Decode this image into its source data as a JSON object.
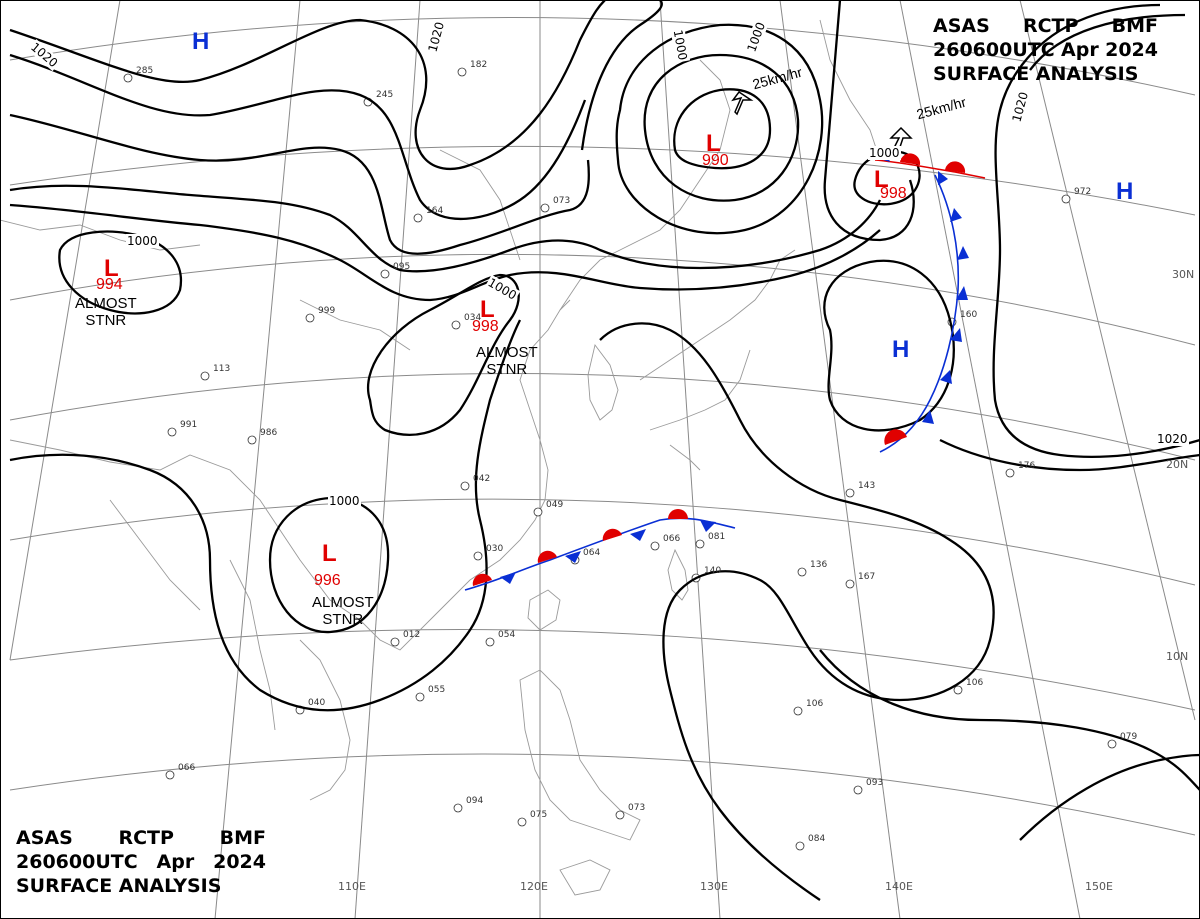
{
  "header_top": {
    "line1": [
      "ASAS",
      "RCTP",
      "BMF"
    ],
    "line2": [
      "260600UTC",
      "Apr",
      "2024"
    ],
    "line3": "SURFACE ANALYSIS"
  },
  "header_bottom": {
    "line1": [
      "ASAS",
      "RCTP",
      "BMF"
    ],
    "line2": [
      "260600UTC",
      "Apr",
      "2024"
    ],
    "line3": "SURFACE ANALYSIS"
  },
  "lat_labels": [
    "30N",
    "20N",
    "10N"
  ],
  "lon_labels": [
    "110E",
    "120E",
    "130E",
    "140E",
    "150E"
  ],
  "colors": {
    "low": "#e00000",
    "high": "#0a2fd4",
    "warm_front": "#e00000",
    "cold_front": "#0a2fd4",
    "isobar": "#000000"
  },
  "lows": [
    {
      "symbol": "L",
      "pressure": "994",
      "note": [
        "ALMOST",
        "STNR"
      ]
    },
    {
      "symbol": "L",
      "pressure": "998",
      "note": [
        "ALMOST",
        "STNR"
      ]
    },
    {
      "symbol": "L",
      "pressure": "996",
      "note": [
        "ALMOST",
        "STNR"
      ]
    },
    {
      "symbol": "L",
      "pressure": "990",
      "note": []
    },
    {
      "symbol": "L",
      "pressure": "998",
      "note": []
    }
  ],
  "highs": [
    {
      "symbol": "H"
    },
    {
      "symbol": "H"
    },
    {
      "symbol": "H"
    }
  ],
  "isobar_labels": [
    "1020",
    "1020",
    "1000",
    "1000",
    "1000",
    "1000",
    "1000",
    "1020",
    "1020",
    "1000"
  ],
  "motion": [
    {
      "speed": "25km/hr"
    },
    {
      "speed": "25km/hr"
    }
  ],
  "station_samples": [
    "285",
    "182",
    "245",
    "095",
    "164",
    "073",
    "999",
    "034",
    "113",
    "991",
    "986",
    "042",
    "049",
    "064",
    "066",
    "081",
    "030",
    "140",
    "136",
    "167",
    "143",
    "176",
    "106",
    "106",
    "054",
    "012",
    "055",
    "040",
    "066",
    "094",
    "075",
    "073",
    "084",
    "093",
    "079",
    "972",
    "160"
  ]
}
